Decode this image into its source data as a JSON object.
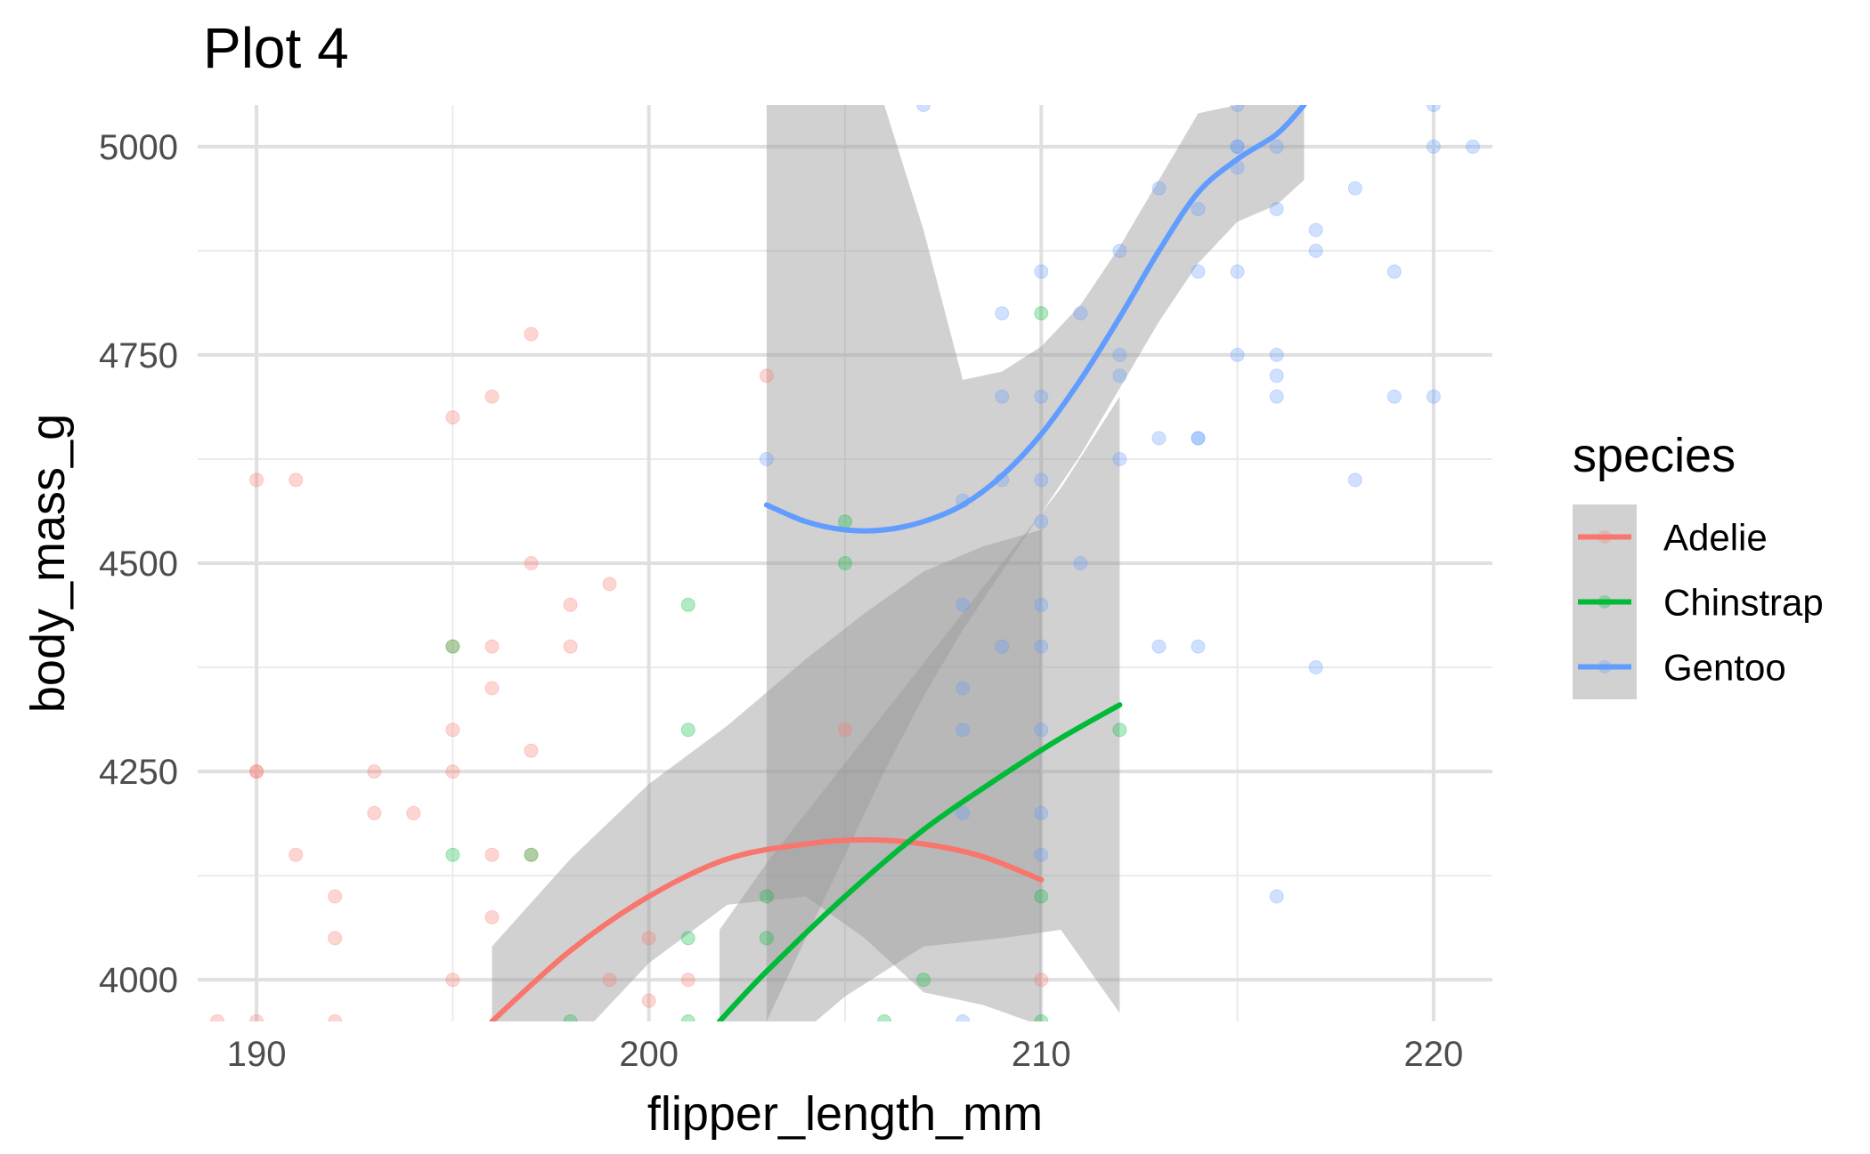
{
  "chart_data": {
    "type": "scatter",
    "title": "Plot 4",
    "xlabel": "flipper_length_mm",
    "ylabel": "body_mass_g",
    "xlim": [
      188.5,
      221.5
    ],
    "ylim": [
      3950,
      5050
    ],
    "x_ticks": [
      190,
      200,
      210,
      220
    ],
    "y_ticks": [
      4000,
      4250,
      4500,
      4750,
      5000
    ],
    "grid": true,
    "legend": {
      "title": "species",
      "position": "right",
      "entries": [
        "Adelie",
        "Chinstrap",
        "Gentoo"
      ]
    },
    "series": [
      {
        "name": "Adelie",
        "color": "#F8766D",
        "points": [
          [
            189,
            3950
          ],
          [
            190,
            3950
          ],
          [
            190,
            4250
          ],
          [
            190,
            4250
          ],
          [
            190,
            4600
          ],
          [
            191,
            4600
          ],
          [
            191,
            4150
          ],
          [
            192,
            4100
          ],
          [
            192,
            4050
          ],
          [
            192,
            3950
          ],
          [
            193,
            4250
          ],
          [
            193,
            4200
          ],
          [
            194,
            4200
          ],
          [
            195,
            4675
          ],
          [
            195,
            4300
          ],
          [
            195,
            4250
          ],
          [
            195,
            4000
          ],
          [
            195,
            4400
          ],
          [
            196,
            4700
          ],
          [
            196,
            4400
          ],
          [
            196,
            4350
          ],
          [
            196,
            4150
          ],
          [
            196,
            4075
          ],
          [
            197,
            4775
          ],
          [
            197,
            4500
          ],
          [
            197,
            4275
          ],
          [
            197,
            4150
          ],
          [
            198,
            4450
          ],
          [
            198,
            4400
          ],
          [
            199,
            4475
          ],
          [
            199,
            4000
          ],
          [
            200,
            4050
          ],
          [
            200,
            3975
          ],
          [
            201,
            4000
          ],
          [
            203,
            4725
          ],
          [
            205,
            4300
          ],
          [
            210,
            4000
          ]
        ],
        "smooth": {
          "x": [
            196,
            198,
            200,
            202,
            204,
            205.5,
            207,
            208.5,
            210
          ],
          "y": [
            3950,
            4035,
            4100,
            4145,
            4163,
            4168,
            4163,
            4148,
            4120
          ],
          "lower": [
            3815,
            3920,
            4020,
            4090,
            4100,
            4050,
            3985,
            3970,
            3945
          ],
          "upper": [
            4040,
            4145,
            4235,
            4305,
            4385,
            4440,
            4490,
            4520,
            4540
          ]
        }
      },
      {
        "name": "Chinstrap",
        "color": "#00BA38",
        "points": [
          [
            195,
            4400
          ],
          [
            195,
            4150
          ],
          [
            197,
            4150
          ],
          [
            198,
            3950
          ],
          [
            201,
            4450
          ],
          [
            201,
            4300
          ],
          [
            201,
            4050
          ],
          [
            201,
            3950
          ],
          [
            203,
            4100
          ],
          [
            203,
            4050
          ],
          [
            205,
            4550
          ],
          [
            205,
            4500
          ],
          [
            206,
            3950
          ],
          [
            207,
            4000
          ],
          [
            210,
            4800
          ],
          [
            210,
            4100
          ],
          [
            210,
            3950
          ],
          [
            212,
            4300
          ]
        ],
        "smooth": {
          "x": [
            201.8,
            203,
            205,
            207,
            209,
            210.5,
            212
          ],
          "y": [
            3950,
            4010,
            4100,
            4180,
            4245,
            4290,
            4330
          ],
          "lower": [
            3830,
            3900,
            3980,
            4040,
            4050,
            4060,
            3960
          ],
          "upper": [
            4060,
            4140,
            4260,
            4380,
            4500,
            4590,
            4700
          ]
        }
      },
      {
        "name": "Gentoo",
        "color": "#619CFF",
        "points": [
          [
            203,
            4625
          ],
          [
            207,
            5050
          ],
          [
            208,
            4575
          ],
          [
            208,
            4450
          ],
          [
            208,
            4350
          ],
          [
            208,
            4300
          ],
          [
            208,
            4200
          ],
          [
            208,
            3950
          ],
          [
            209,
            4800
          ],
          [
            209,
            4700
          ],
          [
            209,
            4600
          ],
          [
            209,
            4400
          ],
          [
            210,
            4850
          ],
          [
            210,
            4700
          ],
          [
            210,
            4600
          ],
          [
            210,
            4550
          ],
          [
            210,
            4450
          ],
          [
            210,
            4400
          ],
          [
            210,
            4300
          ],
          [
            210,
            4200
          ],
          [
            210,
            4150
          ],
          [
            211,
            4800
          ],
          [
            211,
            4500
          ],
          [
            212,
            4875
          ],
          [
            212,
            4750
          ],
          [
            212,
            4725
          ],
          [
            212,
            4625
          ],
          [
            213,
            4950
          ],
          [
            213,
            4650
          ],
          [
            213,
            4400
          ],
          [
            214,
            4925
          ],
          [
            214,
            4850
          ],
          [
            214,
            4650
          ],
          [
            214,
            4650
          ],
          [
            214,
            4400
          ],
          [
            215,
            5050
          ],
          [
            215,
            5000
          ],
          [
            215,
            5000
          ],
          [
            215,
            4975
          ],
          [
            215,
            4850
          ],
          [
            215,
            4750
          ],
          [
            216,
            5000
          ],
          [
            216,
            4925
          ],
          [
            216,
            4750
          ],
          [
            216,
            4725
          ],
          [
            216,
            4700
          ],
          [
            216,
            4100
          ],
          [
            217,
            4900
          ],
          [
            217,
            4875
          ],
          [
            217,
            4375
          ],
          [
            218,
            4950
          ],
          [
            218,
            4600
          ],
          [
            219,
            4850
          ],
          [
            219,
            4700
          ],
          [
            220,
            5050
          ],
          [
            220,
            5000
          ],
          [
            220,
            4700
          ],
          [
            221,
            5000
          ]
        ],
        "smooth": {
          "x": [
            203,
            204,
            205,
            206,
            207,
            208,
            209,
            210,
            211,
            212,
            213,
            214,
            215,
            216,
            216.7
          ],
          "y": [
            4570,
            4550,
            4540,
            4540,
            4550,
            4570,
            4605,
            4655,
            4720,
            4795,
            4875,
            4945,
            4985,
            5015,
            5050
          ],
          "lower": [
            3950,
            4050,
            4150,
            4250,
            4340,
            4420,
            4490,
            4560,
            4630,
            4710,
            4790,
            4860,
            4910,
            4930,
            4960
          ],
          "upper": [
            5050,
            5050,
            5050,
            5050,
            4900,
            4720,
            4730,
            4760,
            4810,
            4880,
            4960,
            5040,
            5050,
            5050,
            5050
          ]
        }
      }
    ]
  }
}
